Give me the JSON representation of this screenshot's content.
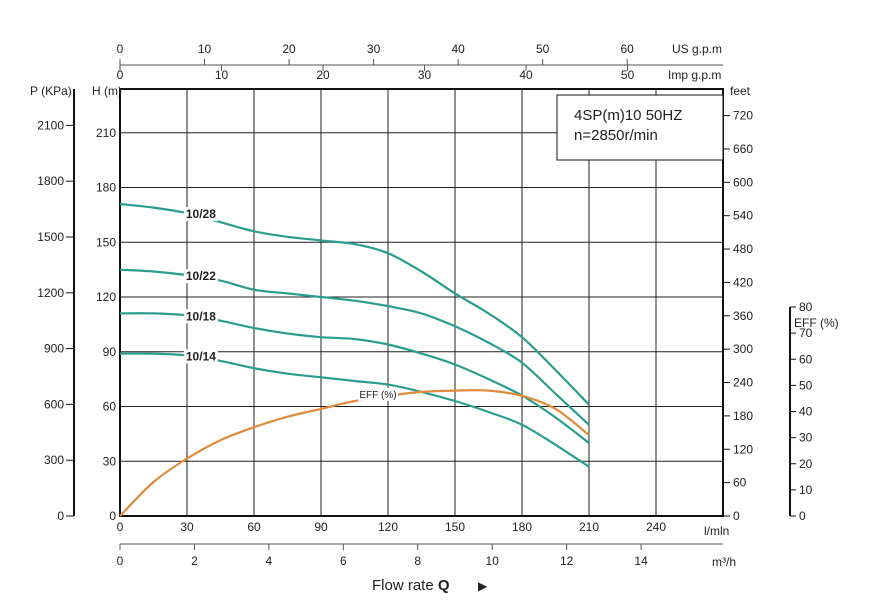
{
  "chart_data": {
    "type": "line",
    "title": "4SP(m)10 50HZ",
    "subtitle": "n=2850r/min",
    "x": [
      0,
      30,
      60,
      90,
      120,
      150,
      180,
      210
    ],
    "xlabel": "l/mln",
    "xlim": [
      0,
      270
    ],
    "x_ticks": [
      "0",
      "30",
      "60",
      "90",
      "120",
      "150",
      "180",
      "210",
      "240"
    ],
    "ylabel": "H (m)",
    "ylim": [
      0,
      234
    ],
    "y_ticks": [
      "0",
      "30",
      "60",
      "90",
      "120",
      "150",
      "180",
      "210"
    ],
    "grid": true,
    "flow_title": "Flow rate",
    "flow_symbol": "Q",
    "flow_arrow": "▶",
    "series": [
      {
        "name": "10/28",
        "color": "#2a9d8f",
        "x": [
          0,
          15,
          30,
          45,
          60,
          75,
          90,
          105,
          120,
          135,
          150,
          165,
          180,
          195,
          210
        ],
        "values": [
          171,
          169,
          166,
          161,
          156,
          153,
          151,
          149,
          144,
          134,
          122,
          111,
          98,
          80,
          61
        ]
      },
      {
        "name": "10/22",
        "color": "#2a9d8f",
        "x": [
          0,
          15,
          30,
          45,
          60,
          75,
          90,
          105,
          120,
          135,
          150,
          165,
          180,
          195,
          210
        ],
        "values": [
          135,
          134,
          132,
          129,
          124,
          122,
          120,
          118,
          115,
          111,
          104,
          95,
          84,
          67,
          50
        ]
      },
      {
        "name": "10/18",
        "color": "#2a9d8f",
        "x": [
          0,
          15,
          30,
          45,
          60,
          75,
          90,
          105,
          120,
          135,
          150,
          165,
          180,
          195,
          210
        ],
        "values": [
          111,
          111,
          110,
          107,
          103,
          100,
          98,
          97,
          94,
          89,
          83,
          75,
          66,
          54,
          40
        ]
      },
      {
        "name": "10/14",
        "color": "#2a9d8f",
        "x": [
          0,
          15,
          30,
          45,
          60,
          75,
          90,
          105,
          120,
          135,
          150,
          165,
          180,
          195,
          210
        ],
        "values": [
          89,
          89,
          88,
          85,
          81,
          78,
          76,
          74,
          72,
          68,
          63,
          57,
          50,
          39,
          27
        ]
      },
      {
        "name": "EFF (%)",
        "color": "#e08a3c",
        "x": [
          0,
          15,
          30,
          45,
          60,
          75,
          90,
          105,
          120,
          135,
          150,
          165,
          180,
          195,
          210
        ],
        "eff_values": [
          0,
          13,
          22,
          29,
          34,
          38,
          41,
          44,
          46,
          47.5,
          48,
          48,
          46,
          41,
          31
        ]
      }
    ],
    "axes": {
      "us_gpm": {
        "label": "US g.p.m",
        "ticks": [
          "0",
          "10",
          "20",
          "30",
          "40",
          "50",
          "60"
        ],
        "per_lpm": 0.2642
      },
      "imp_gpm": {
        "label": "Imp g.p.m",
        "ticks": [
          "0",
          "10",
          "20",
          "30",
          "40",
          "50"
        ],
        "per_lpm": 0.22
      },
      "pressure": {
        "label": "P (KPa)",
        "ticks": [
          "0",
          "300",
          "600",
          "900",
          "1200",
          "1500",
          "1800",
          "2100"
        ],
        "per_m": 9.81
      },
      "feet": {
        "label": "feet",
        "ticks": [
          "0",
          "60",
          "120",
          "180",
          "240",
          "300",
          "360",
          "420",
          "480",
          "540",
          "600",
          "660",
          "720"
        ],
        "per_m": 3.281
      },
      "m3h": {
        "label": "m³/h",
        "ticks": [
          "0",
          "2",
          "4",
          "6",
          "8",
          "10",
          "12",
          "14"
        ],
        "per_lpm": 0.06
      },
      "eff": {
        "label": "EFF (%)",
        "ticks": [
          "0",
          "10",
          "20",
          "30",
          "40",
          "50",
          "60",
          "70",
          "80"
        ],
        "ylim": [
          0,
          80
        ]
      }
    }
  }
}
